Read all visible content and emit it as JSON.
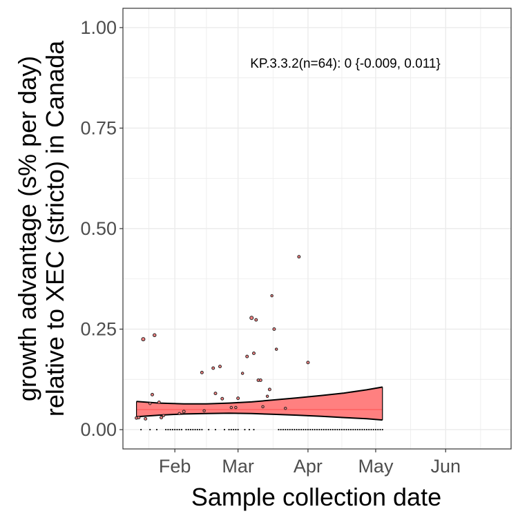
{
  "chart_data": {
    "type": "scatter",
    "title": "",
    "xlabel": "Sample collection date",
    "ylabel_line1": "growth advantage (s% per day)",
    "ylabel_line2": "relative to XEC (stricto) in Canada",
    "annotation": "KP.3.3.2(n=64): 0 {-0.009, 0.011}",
    "x_ticks": [
      {
        "label": "Feb",
        "date": "2025-02-01"
      },
      {
        "label": "Mar",
        "date": "2025-03-01"
      },
      {
        "label": "Apr",
        "date": "2025-04-01"
      },
      {
        "label": "May",
        "date": "2025-05-01"
      },
      {
        "label": "Jun",
        "date": "2025-06-01"
      }
    ],
    "y_ticks": [
      {
        "label": "0.00",
        "value": 0.0
      },
      {
        "label": "0.25",
        "value": 0.25
      },
      {
        "label": "0.50",
        "value": 0.5
      },
      {
        "label": "0.75",
        "value": 0.75
      },
      {
        "label": "1.00",
        "value": 1.0
      }
    ],
    "xlim": [
      "2025-01-09",
      "2025-06-30"
    ],
    "ylim": [
      -0.048,
      1.048
    ],
    "grid": true,
    "colors": {
      "ribbon_fill": "#ff8080",
      "ribbon_edge": "#000000",
      "fit_line": "#ff6060",
      "point_fill": "#f08080",
      "panel_border": "#333333",
      "grid": "#ebebeb"
    },
    "fit": {
      "x": [
        "2025-01-15",
        "2025-01-25",
        "2025-02-05",
        "2025-02-15",
        "2025-02-25",
        "2025-03-07",
        "2025-03-17",
        "2025-03-27",
        "2025-04-07",
        "2025-04-17",
        "2025-04-27",
        "2025-05-04"
      ],
      "estimate": [
        0.05,
        0.05,
        0.05,
        0.05,
        0.05,
        0.05,
        0.05,
        0.05,
        0.05,
        0.05,
        0.05,
        0.05
      ],
      "lower": [
        0.032,
        0.036,
        0.039,
        0.04,
        0.041,
        0.04,
        0.038,
        0.036,
        0.033,
        0.03,
        0.027,
        0.024
      ],
      "upper": [
        0.07,
        0.066,
        0.064,
        0.064,
        0.066,
        0.069,
        0.074,
        0.079,
        0.085,
        0.091,
        0.099,
        0.106
      ]
    },
    "points": [
      {
        "date": "2025-01-15",
        "value": 0.029,
        "size": 3
      },
      {
        "date": "2025-01-16",
        "value": 0.03,
        "size": 3
      },
      {
        "date": "2025-01-18",
        "value": 0.225,
        "size": 4
      },
      {
        "date": "2025-01-19",
        "value": 0.027,
        "size": 3
      },
      {
        "date": "2025-01-21",
        "value": 0.065,
        "size": 2.5
      },
      {
        "date": "2025-01-22",
        "value": 0.087,
        "size": 3
      },
      {
        "date": "2025-01-23",
        "value": 0.235,
        "size": 3.5
      },
      {
        "date": "2025-01-25",
        "value": 0.068,
        "size": 3
      },
      {
        "date": "2025-01-26",
        "value": 0.03,
        "size": 3
      },
      {
        "date": "2025-01-27",
        "value": 0.035,
        "size": 2.5
      },
      {
        "date": "2025-02-03",
        "value": 0.04,
        "size": 2.5
      },
      {
        "date": "2025-02-05",
        "value": 0.045,
        "size": 3
      },
      {
        "date": "2025-02-13",
        "value": 0.142,
        "size": 3
      },
      {
        "date": "2025-02-14",
        "value": 0.047,
        "size": 2.5
      },
      {
        "date": "2025-02-18",
        "value": 0.153,
        "size": 3
      },
      {
        "date": "2025-02-19",
        "value": 0.09,
        "size": 3
      },
      {
        "date": "2025-02-21",
        "value": 0.157,
        "size": 3
      },
      {
        "date": "2025-02-22",
        "value": 0.077,
        "size": 3
      },
      {
        "date": "2025-02-26",
        "value": 0.055,
        "size": 2.5
      },
      {
        "date": "2025-02-28",
        "value": 0.055,
        "size": 2.5
      },
      {
        "date": "2025-03-01",
        "value": 0.078,
        "size": 3
      },
      {
        "date": "2025-03-03",
        "value": 0.14,
        "size": 2.5
      },
      {
        "date": "2025-03-05",
        "value": 0.182,
        "size": 3
      },
      {
        "date": "2025-03-07",
        "value": 0.278,
        "size": 4
      },
      {
        "date": "2025-03-08",
        "value": 0.19,
        "size": 3
      },
      {
        "date": "2025-03-09",
        "value": 0.273,
        "size": 3
      },
      {
        "date": "2025-03-10",
        "value": 0.123,
        "size": 3
      },
      {
        "date": "2025-03-11",
        "value": 0.123,
        "size": 3
      },
      {
        "date": "2025-03-12",
        "value": 0.057,
        "size": 2.5
      },
      {
        "date": "2025-03-14",
        "value": 0.083,
        "size": 2.5
      },
      {
        "date": "2025-03-15",
        "value": 0.1,
        "size": 3
      },
      {
        "date": "2025-03-16",
        "value": 0.333,
        "size": 2.5
      },
      {
        "date": "2025-03-17",
        "value": 0.25,
        "size": 3
      },
      {
        "date": "2025-03-18",
        "value": 0.2,
        "size": 2.5
      },
      {
        "date": "2025-03-22",
        "value": 0.053,
        "size": 2.5
      },
      {
        "date": "2025-03-28",
        "value": 0.43,
        "size": 3
      },
      {
        "date": "2025-04-01",
        "value": 0.167,
        "size": 3
      }
    ],
    "zero_points": [
      "2025-01-17",
      "2025-01-21",
      "2025-01-24",
      "2025-01-28",
      "2025-01-29",
      "2025-01-30",
      "2025-01-31",
      "2025-02-01",
      "2025-02-02",
      "2025-02-03",
      "2025-02-04",
      "2025-02-06",
      "2025-02-07",
      "2025-02-08",
      "2025-02-09",
      "2025-02-10",
      "2025-02-11",
      "2025-02-12",
      "2025-02-13",
      "2025-02-16",
      "2025-02-19",
      "2025-02-23",
      "2025-02-25",
      "2025-02-26",
      "2025-02-27",
      "2025-02-28",
      "2025-03-01",
      "2025-03-04",
      "2025-03-06",
      "2025-03-08",
      "2025-03-19",
      "2025-03-20",
      "2025-03-21",
      "2025-03-22",
      "2025-03-23",
      "2025-03-24",
      "2025-03-25",
      "2025-03-26",
      "2025-03-27",
      "2025-03-28",
      "2025-03-29",
      "2025-03-30",
      "2025-03-31",
      "2025-04-01",
      "2025-04-02",
      "2025-04-03",
      "2025-04-04",
      "2025-04-05",
      "2025-04-06",
      "2025-04-07",
      "2025-04-08",
      "2025-04-09",
      "2025-04-10",
      "2025-04-11",
      "2025-04-12",
      "2025-04-13",
      "2025-04-14",
      "2025-04-15",
      "2025-04-16",
      "2025-04-17",
      "2025-04-18",
      "2025-04-19",
      "2025-04-20",
      "2025-04-21",
      "2025-04-22",
      "2025-04-23",
      "2025-04-24",
      "2025-04-25",
      "2025-04-26",
      "2025-04-27",
      "2025-04-28",
      "2025-04-29",
      "2025-04-30",
      "2025-05-01",
      "2025-05-02",
      "2025-05-03",
      "2025-05-04"
    ]
  }
}
